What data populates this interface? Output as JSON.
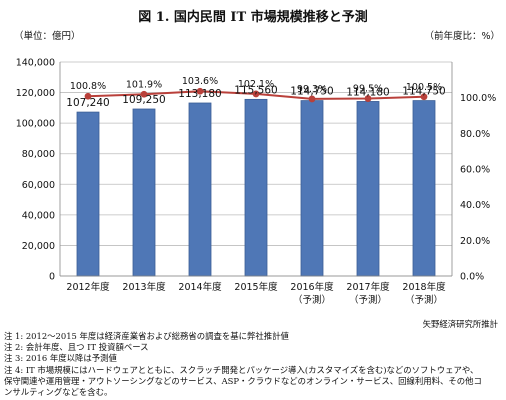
{
  "title": "図 1.  国内民間 IT 市場規模推移と予測",
  "source": "矢野経済研究所推計",
  "notes": [
    "注 1: 2012～2015 年度は経済産業省および総務省の調査を基に弊社推計値",
    "注 2: 会計年度、且つ IT 投資額ベース",
    "注 3: 2016 年度以降は予測値",
    "注 4:  IT 市場規模にはハードウェアとともに、スクラッチ開発とパッケージ導入(カスタマイズを含む)などのソフトウェアや、",
    "保守関連や運用管理・アウトソーシングなどのサービス、ASP・クラウドなどのオンライン・サービス、回線利用料、その他コ",
    "ンサルティングなどを含む。"
  ],
  "chart_data": {
    "type": "bar",
    "categories": [
      [
        "2012年度"
      ],
      [
        "2013年度"
      ],
      [
        "2014年度"
      ],
      [
        "2015年度"
      ],
      [
        "2016年度",
        "（予測）"
      ],
      [
        "2017年度",
        "（予測）"
      ],
      [
        "2018年度",
        "（予測）"
      ]
    ],
    "ylabel": "（単位：億円）",
    "y2label": "（前年度比：%）",
    "ylim": [
      0,
      140000
    ],
    "yticks": [
      0,
      20000,
      40000,
      60000,
      80000,
      100000,
      120000,
      140000
    ],
    "ytick_labels": [
      "0",
      "20,000",
      "40,000",
      "60,000",
      "80,000",
      "100,000",
      "120,000",
      "140,000"
    ],
    "y2lim": [
      0,
      120
    ],
    "y2ticks": [
      0,
      20,
      40,
      60,
      80,
      100
    ],
    "y2tick_labels": [
      "0.0%",
      "20.0%",
      "40.0%",
      "60.0%",
      "80.0%",
      "100.0%"
    ],
    "grid": true,
    "bars": {
      "values": [
        107240,
        109250,
        113180,
        115560,
        114750,
        114180,
        114750
      ],
      "labels": [
        "107,240",
        "109,250",
        "113,180",
        "115,560",
        "114,750",
        "114,180",
        "114,750"
      ],
      "color": "#4f77b6",
      "edge": "#3b5e96"
    },
    "line": {
      "values": [
        100.8,
        101.9,
        103.6,
        102.1,
        99.3,
        99.5,
        100.5
      ],
      "labels": [
        "100.8%",
        "101.9%",
        "103.6%",
        "102.1%",
        "99.3%",
        "99.5%",
        "100.5%"
      ],
      "color": "#b9403a"
    }
  }
}
